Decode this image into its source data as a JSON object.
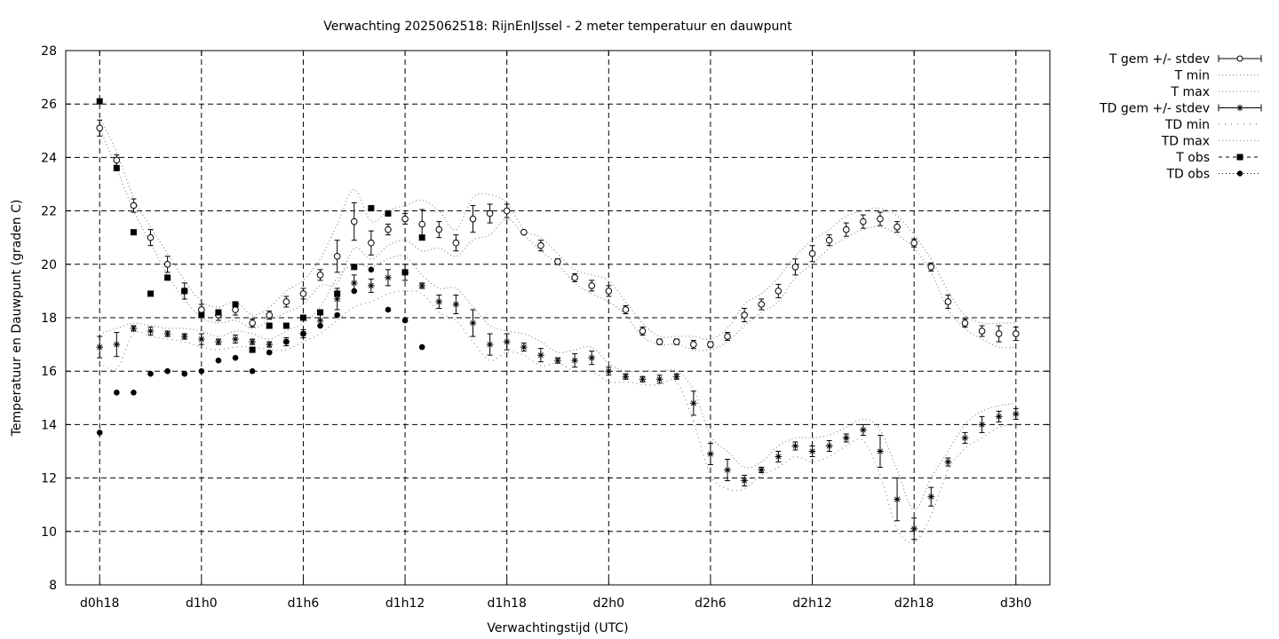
{
  "chart_data": {
    "type": "line",
    "title": "Verwachting 2025062518: RijnEnIJssel - 2 meter temperatuur en dauwpunt",
    "xlabel": "Verwachtingstijd (UTC)",
    "ylabel": "Temperatuur en Dauwpunt (graden C)",
    "ylim": [
      8,
      28
    ],
    "y_ticks": [
      8,
      10,
      12,
      14,
      16,
      18,
      20,
      22,
      24,
      26,
      28
    ],
    "x_range_hours": [
      -2,
      56
    ],
    "x_ticks": [
      {
        "hour": 0,
        "label": "d0h18"
      },
      {
        "hour": 6,
        "label": "d1h0"
      },
      {
        "hour": 12,
        "label": "d1h6"
      },
      {
        "hour": 18,
        "label": "d1h12"
      },
      {
        "hour": 24,
        "label": "d1h18"
      },
      {
        "hour": 30,
        "label": "d2h0"
      },
      {
        "hour": 36,
        "label": "d2h6"
      },
      {
        "hour": 42,
        "label": "d2h12"
      },
      {
        "hour": 48,
        "label": "d2h18"
      },
      {
        "hour": 54,
        "label": "d3h0"
      }
    ],
    "grid": true,
    "legend_position": "outside-right",
    "legend": [
      {
        "label": "T gem +/- stdev",
        "style": "errorbar-circle"
      },
      {
        "label": "T min",
        "style": "dotted"
      },
      {
        "label": "T max",
        "style": "dotted"
      },
      {
        "label": "TD gem +/- stdev",
        "style": "errorbar-star"
      },
      {
        "label": "TD min",
        "style": "dotted-sparse"
      },
      {
        "label": "TD max",
        "style": "dotted"
      },
      {
        "label": "T obs",
        "style": "square"
      },
      {
        "label": "TD obs",
        "style": "dot"
      }
    ],
    "x_hours": [
      0,
      1,
      2,
      3,
      4,
      5,
      6,
      7,
      8,
      9,
      10,
      11,
      12,
      13,
      14,
      15,
      16,
      17,
      18,
      19,
      20,
      21,
      22,
      23,
      24,
      25,
      26,
      27,
      28,
      29,
      30,
      31,
      32,
      33,
      34,
      35,
      36,
      37,
      38,
      39,
      40,
      41,
      42,
      43,
      44,
      45,
      46,
      47,
      48,
      49,
      50,
      51,
      52,
      53,
      54
    ],
    "series": [
      {
        "name": "T gem +/- stdev",
        "mean": [
          25.1,
          23.9,
          22.2,
          21.0,
          20.0,
          19.0,
          18.3,
          18.1,
          18.3,
          17.8,
          18.1,
          18.6,
          18.9,
          19.6,
          20.3,
          21.6,
          20.8,
          21.3,
          21.7,
          21.5,
          21.3,
          20.8,
          21.7,
          21.9,
          22.0,
          21.2,
          20.7,
          20.1,
          19.5,
          19.2,
          19.0,
          18.3,
          17.5,
          17.1,
          17.1,
          17.0,
          17.0,
          17.3,
          18.1,
          18.5,
          19.0,
          19.9,
          20.4,
          20.9,
          21.3,
          21.6,
          21.7,
          21.4,
          20.8,
          19.9,
          18.6,
          17.8,
          17.5,
          17.4,
          17.4
        ],
        "stdev": [
          0.3,
          0.2,
          0.25,
          0.3,
          0.3,
          0.3,
          0.2,
          0.2,
          0.2,
          0.15,
          0.15,
          0.2,
          0.2,
          0.2,
          0.6,
          0.7,
          0.45,
          0.2,
          0.2,
          0.55,
          0.3,
          0.3,
          0.5,
          0.35,
          0.25,
          0.05,
          0.2,
          0.1,
          0.15,
          0.2,
          0.2,
          0.15,
          0.15,
          0.1,
          0.1,
          0.15,
          0.1,
          0.15,
          0.25,
          0.2,
          0.25,
          0.3,
          0.3,
          0.2,
          0.25,
          0.25,
          0.25,
          0.2,
          0.15,
          0.15,
          0.25,
          0.15,
          0.2,
          0.3,
          0.25
        ]
      },
      {
        "name": "T min",
        "values": [
          25.1,
          23.6,
          22.0,
          20.8,
          19.6,
          18.7,
          18.0,
          17.8,
          17.9,
          17.6,
          17.9,
          18.2,
          18.5,
          19.2,
          19.3,
          20.6,
          20.2,
          20.7,
          20.9,
          20.5,
          20.6,
          20.3,
          20.9,
          21.1,
          21.7,
          21.1,
          20.5,
          20.0,
          19.3,
          18.9,
          18.6,
          18.1,
          17.3,
          17.0,
          17.0,
          16.8,
          16.8,
          17.1,
          17.7,
          18.2,
          18.6,
          19.5,
          20.0,
          20.6,
          21.0,
          21.3,
          21.4,
          21.1,
          20.6,
          19.7,
          18.3,
          17.6,
          17.2,
          16.9,
          16.9
        ]
      },
      {
        "name": "T max",
        "values": [
          25.5,
          24.2,
          22.5,
          21.4,
          20.4,
          19.4,
          18.6,
          18.4,
          18.6,
          18.1,
          18.4,
          19.0,
          19.4,
          20.2,
          21.5,
          22.8,
          21.6,
          22.0,
          22.2,
          22.4,
          22.0,
          21.3,
          22.5,
          22.6,
          22.3,
          21.3,
          21.0,
          20.4,
          19.8,
          19.6,
          19.4,
          18.6,
          17.8,
          17.3,
          17.3,
          17.3,
          17.2,
          17.6,
          18.5,
          18.9,
          19.5,
          20.3,
          20.9,
          21.3,
          21.8,
          22.0,
          22.1,
          21.8,
          21.1,
          20.2,
          19.0,
          18.1,
          17.8,
          17.8,
          17.8
        ]
      },
      {
        "name": "TD gem +/- stdev",
        "mean": [
          16.9,
          17.0,
          17.6,
          17.5,
          17.4,
          17.3,
          17.2,
          17.1,
          17.2,
          17.1,
          17.0,
          17.1,
          17.4,
          17.9,
          18.7,
          19.3,
          19.2,
          19.5,
          19.7,
          19.2,
          18.6,
          18.5,
          17.8,
          17.0,
          17.1,
          16.9,
          16.6,
          16.4,
          16.4,
          16.5,
          16.0,
          15.8,
          15.7,
          15.7,
          15.8,
          14.8,
          12.9,
          12.3,
          11.9,
          12.3,
          12.8,
          13.2,
          13.0,
          13.2,
          13.5,
          13.8,
          13.0,
          11.2,
          10.1,
          11.3,
          12.6,
          13.5,
          14.0,
          14.3,
          14.4
        ],
        "stdev": [
          0.4,
          0.45,
          0.1,
          0.15,
          0.1,
          0.1,
          0.2,
          0.1,
          0.15,
          0.1,
          0.1,
          0.15,
          0.15,
          0.2,
          0.4,
          0.3,
          0.25,
          0.3,
          0.3,
          0.1,
          0.25,
          0.35,
          0.5,
          0.4,
          0.3,
          0.15,
          0.25,
          0.1,
          0.25,
          0.25,
          0.15,
          0.1,
          0.1,
          0.15,
          0.1,
          0.45,
          0.4,
          0.4,
          0.2,
          0.1,
          0.2,
          0.15,
          0.2,
          0.2,
          0.15,
          0.2,
          0.6,
          0.8,
          0.4,
          0.35,
          0.15,
          0.2,
          0.3,
          0.2,
          0.2
        ]
      },
      {
        "name": "TD min",
        "values": [
          16.3,
          16.1,
          17.4,
          17.3,
          17.2,
          17.1,
          16.9,
          16.8,
          16.9,
          16.9,
          16.8,
          16.8,
          17.1,
          17.4,
          17.9,
          18.4,
          18.6,
          18.9,
          19.0,
          18.9,
          18.2,
          17.9,
          17.1,
          16.4,
          16.7,
          16.6,
          16.2,
          16.3,
          16.0,
          16.0,
          15.6,
          15.6,
          15.5,
          15.5,
          15.6,
          14.1,
          12.1,
          11.6,
          11.6,
          12.1,
          12.4,
          12.8,
          12.6,
          12.8,
          13.2,
          13.4,
          12.1,
          10.1,
          9.6,
          10.6,
          12.3,
          13.1,
          13.5,
          13.9,
          14.0
        ]
      },
      {
        "name": "TD max",
        "values": [
          17.4,
          17.6,
          17.8,
          17.7,
          17.6,
          17.6,
          17.5,
          17.3,
          17.5,
          17.4,
          17.2,
          17.5,
          17.8,
          18.4,
          19.5,
          20.0,
          19.9,
          20.2,
          20.3,
          19.6,
          19.1,
          19.1,
          18.4,
          17.7,
          17.5,
          17.4,
          17.1,
          16.7,
          16.8,
          16.9,
          16.3,
          16.0,
          16.0,
          16.0,
          16.0,
          15.3,
          13.6,
          13.0,
          12.4,
          12.6,
          13.2,
          13.5,
          13.5,
          13.6,
          13.9,
          14.2,
          13.8,
          12.3,
          10.8,
          12.0,
          13.0,
          14.0,
          14.5,
          14.7,
          14.8
        ]
      },
      {
        "name": "T obs",
        "x_hours": [
          0,
          1,
          2,
          3,
          4,
          5,
          6,
          7,
          8,
          9,
          10,
          11,
          12,
          13,
          14,
          15,
          16,
          17,
          18,
          19
        ],
        "values": [
          26.1,
          23.6,
          21.2,
          18.9,
          19.5,
          19.0,
          18.1,
          18.2,
          18.5,
          16.8,
          17.7,
          17.7,
          18.0,
          18.2,
          18.9,
          19.9,
          22.1,
          21.9,
          19.7,
          21.0
        ]
      },
      {
        "name": "TD obs",
        "x_hours": [
          0,
          1,
          2,
          3,
          4,
          5,
          6,
          7,
          8,
          9,
          10,
          11,
          12,
          13,
          14,
          15,
          16,
          17,
          18,
          19
        ],
        "values": [
          13.7,
          15.2,
          15.2,
          15.9,
          16.0,
          15.9,
          16.0,
          16.4,
          16.5,
          16.0,
          16.7,
          17.1,
          17.4,
          17.7,
          18.1,
          19.0,
          19.8,
          18.3,
          17.9,
          16.9
        ]
      }
    ]
  }
}
